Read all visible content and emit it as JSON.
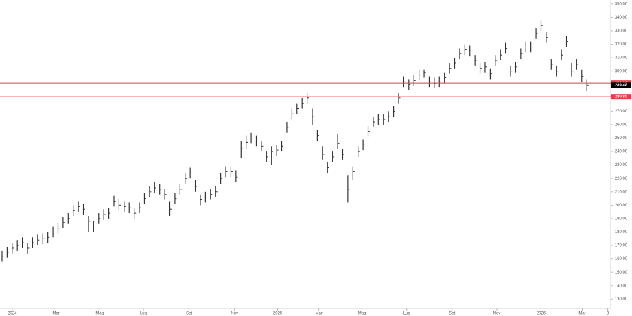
{
  "chart_data": {
    "type": "ohlc",
    "color": "#333333",
    "x": [
      -2,
      -1,
      0,
      1,
      2,
      3,
      4,
      5,
      6,
      7,
      8,
      9,
      10,
      11,
      12,
      13,
      14,
      15,
      16,
      17,
      18,
      19,
      20,
      21,
      22,
      23,
      24,
      25,
      26,
      27,
      28,
      29,
      30,
      31,
      32,
      33,
      34,
      35,
      36,
      37,
      38,
      39,
      40,
      41,
      42,
      43,
      44,
      45,
      46,
      47,
      48,
      49,
      50,
      51,
      52,
      53,
      54,
      55,
      56,
      57,
      58,
      59,
      60,
      61,
      62,
      63,
      64,
      65,
      66,
      67,
      68,
      69,
      70,
      71,
      72,
      73,
      74,
      75,
      76,
      77,
      78,
      79,
      80,
      81,
      82,
      83,
      84,
      85,
      86,
      87,
      88,
      89,
      90,
      91,
      92,
      93,
      94,
      95,
      96,
      97,
      98,
      99,
      100,
      101,
      102,
      103,
      104,
      105,
      106,
      107,
      108,
      109,
      110,
      111,
      112,
      113
    ],
    "high": [
      166,
      169,
      172,
      174,
      176,
      172,
      176,
      178,
      179,
      180,
      184,
      187,
      191,
      194,
      200,
      203,
      201,
      192,
      188,
      194,
      197,
      198,
      207,
      205,
      203,
      202,
      198,
      202,
      209,
      214,
      217,
      216,
      212,
      203,
      209,
      216,
      224,
      228,
      219,
      208,
      210,
      212,
      214,
      224,
      229,
      229,
      226,
      248,
      252,
      254,
      252,
      248,
      240,
      244,
      245,
      248,
      262,
      272,
      276,
      280,
      284,
      272,
      256,
      244,
      232,
      240,
      253,
      242,
      222,
      229,
      244,
      249,
      259,
      266,
      268,
      268,
      270,
      274,
      284,
      296,
      294,
      297,
      301,
      301,
      296,
      295,
      296,
      299,
      306,
      310,
      317,
      320,
      319,
      312,
      306,
      307,
      302,
      312,
      316,
      321,
      304,
      307,
      317,
      322,
      322,
      332,
      338,
      329,
      309,
      304,
      316,
      326,
      306,
      309,
      301,
      294
    ],
    "low": [
      158,
      161,
      164,
      166,
      168,
      164,
      168,
      170,
      171,
      172,
      176,
      179,
      183,
      186,
      192,
      195,
      193,
      180,
      180,
      186,
      189,
      190,
      199,
      196,
      195,
      194,
      190,
      194,
      201,
      206,
      209,
      208,
      204,
      192,
      201,
      208,
      216,
      220,
      210,
      200,
      202,
      204,
      206,
      216,
      221,
      221,
      217,
      235,
      242,
      246,
      244,
      240,
      232,
      230,
      237,
      240,
      254,
      264,
      268,
      272,
      276,
      260,
      248,
      234,
      224,
      232,
      242,
      234,
      202,
      219,
      236,
      241,
      251,
      258,
      260,
      260,
      262,
      266,
      276,
      288,
      286,
      289,
      293,
      295,
      288,
      287,
      288,
      291,
      298,
      302,
      309,
      312,
      311,
      304,
      298,
      299,
      294,
      304,
      308,
      313,
      296,
      299,
      309,
      314,
      314,
      324,
      330,
      321,
      301,
      296,
      308,
      318,
      296,
      301,
      292,
      285
    ],
    "close": [
      162,
      165,
      168,
      170,
      172,
      168,
      172,
      174,
      175,
      176,
      180,
      183,
      187,
      190,
      196,
      199,
      197,
      188,
      183,
      190,
      193,
      194,
      203,
      200,
      199,
      198,
      194,
      198,
      205,
      210,
      213,
      212,
      208,
      197,
      205,
      212,
      220,
      224,
      214,
      204,
      206,
      208,
      210,
      220,
      225,
      225,
      221,
      242,
      247,
      250,
      248,
      244,
      236,
      240,
      241,
      244,
      258,
      268,
      272,
      276,
      280,
      266,
      252,
      238,
      228,
      236,
      246,
      238,
      212,
      225,
      240,
      245,
      255,
      262,
      264,
      264,
      266,
      270,
      280,
      292,
      290,
      293,
      297,
      299,
      292,
      291,
      292,
      295,
      302,
      306,
      313,
      316,
      315,
      308,
      302,
      303,
      298,
      308,
      312,
      317,
      300,
      303,
      313,
      318,
      318,
      328,
      334,
      325,
      305,
      300,
      312,
      322,
      300,
      305,
      296,
      289.48
    ],
    "xlim": [
      -2.4,
      117.7
    ],
    "xticks": [
      {
        "value": 0,
        "label": "2024"
      },
      {
        "value": 8.6,
        "label": "Mar"
      },
      {
        "value": 17.2,
        "label": "Mag"
      },
      {
        "value": 25.8,
        "label": "Lug"
      },
      {
        "value": 34.8,
        "label": "Set"
      },
      {
        "value": 43.7,
        "label": "Nov"
      },
      {
        "value": 52.2,
        "label": "2025"
      },
      {
        "value": 60.3,
        "label": "Mar"
      },
      {
        "value": 68.8,
        "label": "Mag"
      },
      {
        "value": 77.6,
        "label": "Lug"
      },
      {
        "value": 86.5,
        "label": "Set"
      },
      {
        "value": 95.3,
        "label": "Nov"
      },
      {
        "value": 104,
        "label": "2026"
      },
      {
        "value": 112.1,
        "label": "Mar"
      },
      {
        "value": 117.1,
        "label": "3"
      }
    ],
    "ylim": [
      123,
      353
    ],
    "yticks": [
      {
        "value": 130,
        "label": "130.00"
      },
      {
        "value": 140,
        "label": "140.00"
      },
      {
        "value": 150,
        "label": "150.00"
      },
      {
        "value": 160,
        "label": "160.00"
      },
      {
        "value": 170,
        "label": "170.00"
      },
      {
        "value": 180,
        "label": "180.00"
      },
      {
        "value": 190,
        "label": "190.00"
      },
      {
        "value": 200,
        "label": "200.00"
      },
      {
        "value": 210,
        "label": "210.00"
      },
      {
        "value": 220,
        "label": "220.00"
      },
      {
        "value": 230,
        "label": "230.00"
      },
      {
        "value": 240,
        "label": "240.00"
      },
      {
        "value": 250,
        "label": "250.00"
      },
      {
        "value": 260,
        "label": "260.00"
      },
      {
        "value": 270,
        "label": "270.00"
      },
      {
        "value": 280,
        "label": "280.00"
      },
      {
        "value": 290,
        "label": "290.00"
      },
      {
        "value": 300,
        "label": "300.00"
      },
      {
        "value": 310,
        "label": "310.00"
      },
      {
        "value": 320,
        "label": "320.00"
      },
      {
        "value": 330,
        "label": "330.00"
      },
      {
        "value": 340,
        "label": "340.00"
      },
      {
        "value": 350,
        "label": "350.00"
      }
    ],
    "price_lines": [
      {
        "value": 291.06,
        "color": "#f23645"
      },
      {
        "value": 280.85,
        "color": "#f23645"
      }
    ],
    "last_price": {
      "value": 289.48,
      "color": "#000000"
    }
  }
}
